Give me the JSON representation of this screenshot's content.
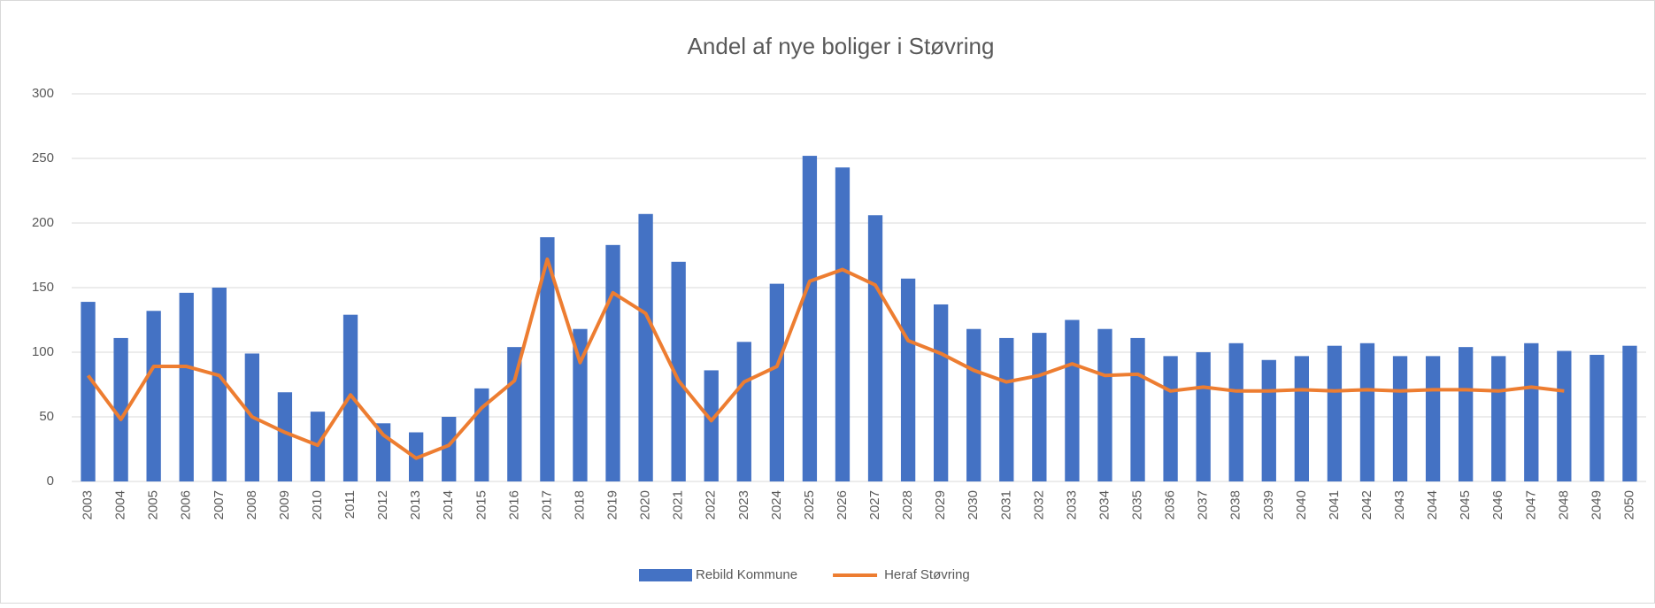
{
  "chart_data": {
    "type": "bar",
    "title": "Andel af nye boliger i Støvring",
    "categories": [
      "2003",
      "2004",
      "2005",
      "2006",
      "2007",
      "2008",
      "2009",
      "2010",
      "2011",
      "2012",
      "2013",
      "2014",
      "2015",
      "2016",
      "2017",
      "2018",
      "2019",
      "2020",
      "2021",
      "2022",
      "2023",
      "2024",
      "2025",
      "2026",
      "2027",
      "2028",
      "2029",
      "2030",
      "2031",
      "2032",
      "2033",
      "2034",
      "2035",
      "2036",
      "2037",
      "2038",
      "2039",
      "2040",
      "2041",
      "2042",
      "2043",
      "2044",
      "2045",
      "2046",
      "2047",
      "2048",
      "2049",
      "2050"
    ],
    "series": [
      {
        "name": "Rebild Kommune",
        "type": "bar",
        "color": "#4472c4",
        "values": [
          139,
          111,
          132,
          146,
          150,
          99,
          69,
          54,
          129,
          45,
          38,
          50,
          72,
          104,
          189,
          118,
          183,
          207,
          170,
          86,
          108,
          153,
          252,
          243,
          206,
          157,
          137,
          118,
          111,
          115,
          125,
          118,
          111,
          97,
          100,
          107,
          94,
          97,
          105,
          107,
          97,
          97,
          104,
          97,
          107,
          101,
          98,
          105
        ]
      },
      {
        "name": "Heraf Støvring",
        "type": "line",
        "color": "#ed7d31",
        "values": [
          82,
          48,
          89,
          89,
          82,
          50,
          38,
          28,
          67,
          36,
          18,
          28,
          57,
          78,
          172,
          92,
          146,
          130,
          78,
          47,
          77,
          89,
          155,
          164,
          152,
          109,
          99,
          86,
          77,
          82,
          91,
          82,
          83,
          70,
          73,
          70,
          70,
          71,
          70,
          71,
          70,
          71,
          71,
          70,
          73,
          70,
          null,
          null
        ]
      }
    ],
    "ylim": [
      0,
      300
    ],
    "yticks": [
      0,
      50,
      100,
      150,
      200,
      250,
      300
    ],
    "grid": true,
    "legend": "bottom"
  }
}
